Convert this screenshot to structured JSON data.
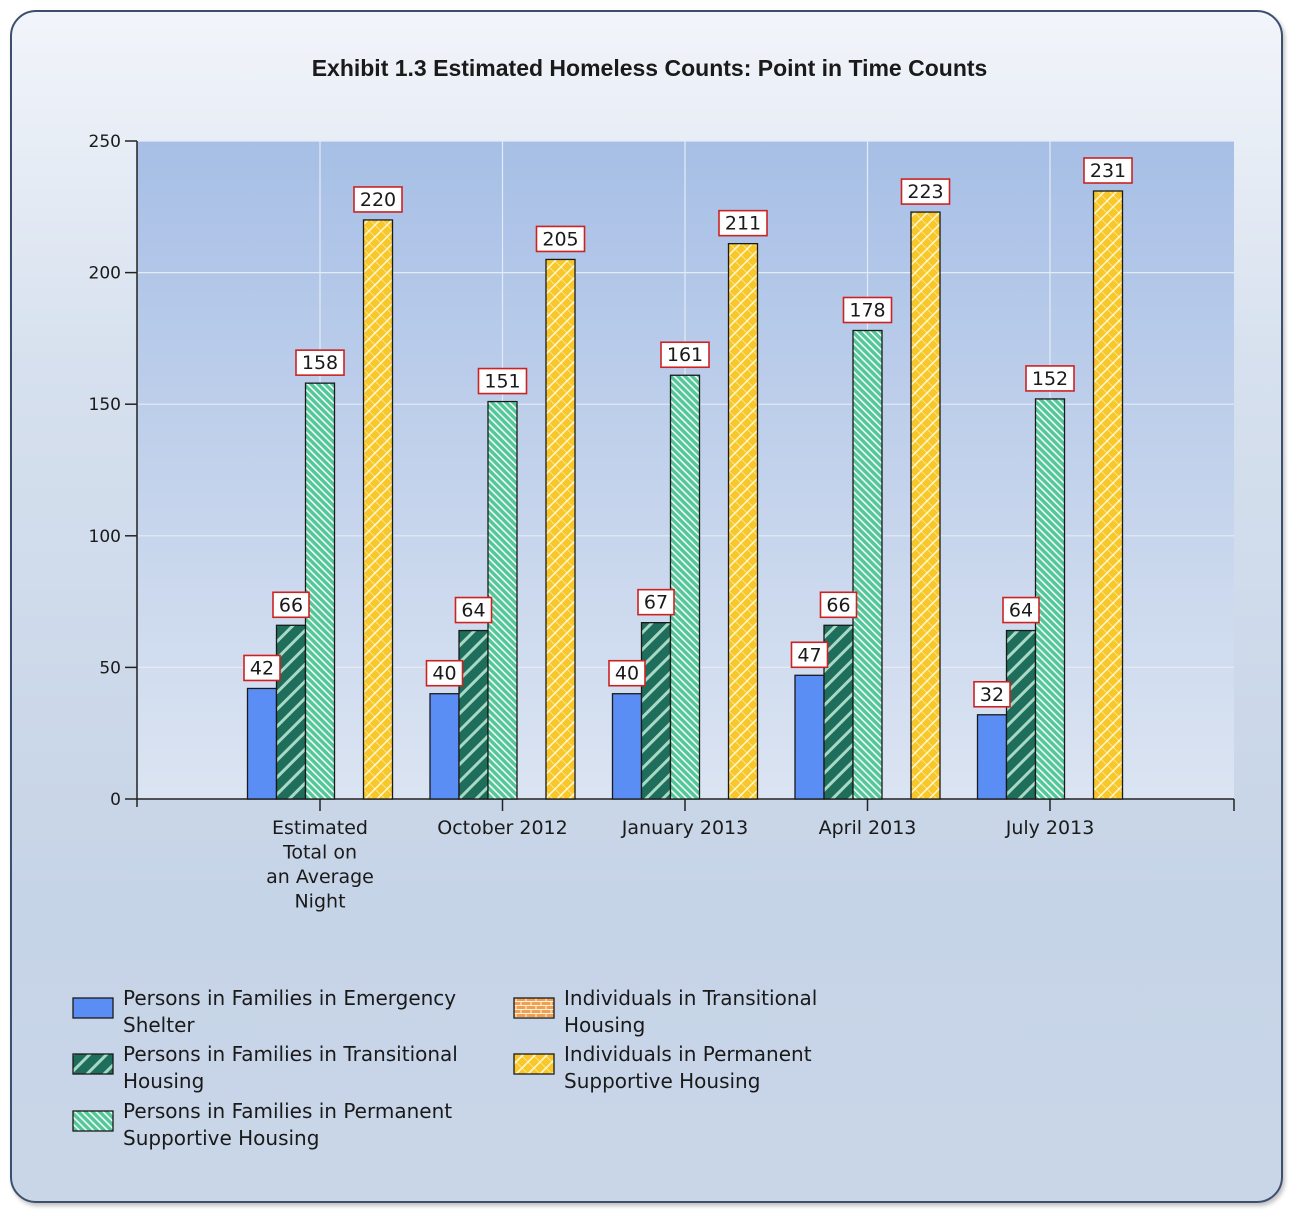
{
  "chart_data": {
    "type": "bar",
    "title": "Exhibit 1.3 Estimated Homeless Counts: Point in Time Counts",
    "categories": [
      [
        "Estimated",
        "Total on",
        "an Average",
        "Night"
      ],
      [
        "October 2012"
      ],
      [
        "January 2013"
      ],
      [
        "April 2013"
      ],
      [
        "July 2013"
      ]
    ],
    "ylim": [
      0,
      250
    ],
    "yticks": [
      0,
      50,
      100,
      150,
      200,
      250
    ],
    "grid": true,
    "legend_position": "bottom-left",
    "series": [
      {
        "name": "Persons in Families in Emergency Shelter",
        "label_lines": [
          "Persons in Families in Emergency",
          "Shelter"
        ],
        "values": [
          42,
          40,
          40,
          47,
          32
        ],
        "color": "#5b8ef5",
        "pattern": "solid"
      },
      {
        "name": "Persons in Families in Transitional Housing",
        "label_lines": [
          "Persons in Families in Transitional",
          "Housing"
        ],
        "values": [
          66,
          64,
          67,
          66,
          64
        ],
        "color": "#1f6d5b",
        "pattern": "wide-diagonal"
      },
      {
        "name": "Persons in Families in Permanent Supportive Housing",
        "label_lines": [
          "Persons in Families in Permanent",
          "Supportive Housing"
        ],
        "values": [
          158,
          151,
          161,
          178,
          152
        ],
        "color": "#53c79a",
        "pattern": "fine-diagonal"
      },
      {
        "name": "Individuals in Transitional Housing",
        "label_lines": [
          "Individuals in Transitional",
          "Housing"
        ],
        "values": [
          null,
          null,
          null,
          null,
          null
        ],
        "color": "#f0a050",
        "pattern": "brick"
      },
      {
        "name": "Individuals in Permanent Supportive Housing",
        "label_lines": [
          "Individuals in Permanent",
          "Supportive Housing"
        ],
        "values": [
          220,
          205,
          211,
          223,
          231
        ],
        "color": "#f7c72c",
        "pattern": "zigzag"
      }
    ]
  }
}
